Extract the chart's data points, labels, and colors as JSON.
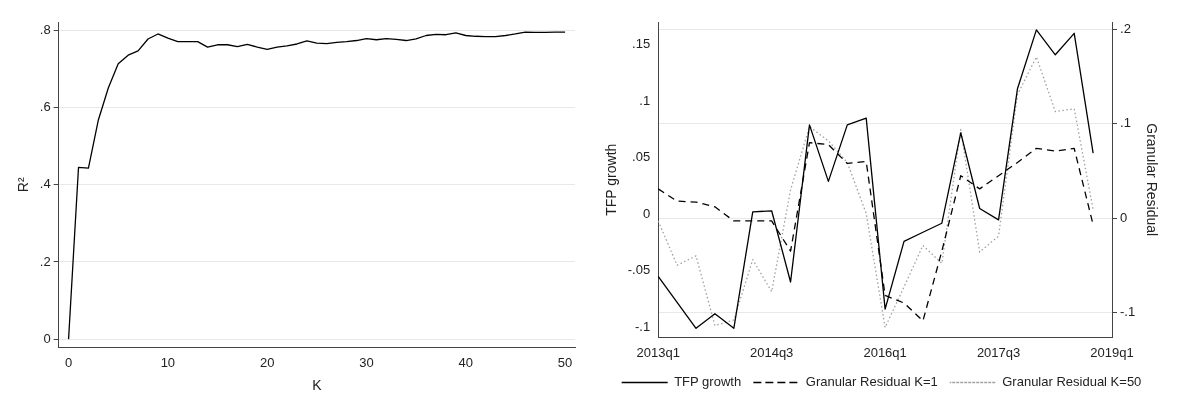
{
  "chart_data": [
    {
      "type": "line",
      "xlabel": "K",
      "ylabel": "R²",
      "x": [
        0,
        1,
        2,
        3,
        4,
        5,
        6,
        7,
        8,
        9,
        10,
        11,
        12,
        13,
        14,
        15,
        16,
        17,
        18,
        19,
        20,
        21,
        22,
        23,
        24,
        25,
        26,
        27,
        28,
        29,
        30,
        31,
        32,
        33,
        34,
        35,
        36,
        37,
        38,
        39,
        40,
        41,
        42,
        43,
        44,
        45,
        46,
        47,
        48,
        49,
        50
      ],
      "values": [
        0,
        0.445,
        0.443,
        0.568,
        0.651,
        0.714,
        0.736,
        0.747,
        0.778,
        0.791,
        0.78,
        0.771,
        0.771,
        0.771,
        0.757,
        0.763,
        0.763,
        0.758,
        0.764,
        0.757,
        0.751,
        0.757,
        0.76,
        0.765,
        0.773,
        0.767,
        0.766,
        0.769,
        0.771,
        0.774,
        0.779,
        0.776,
        0.779,
        0.777,
        0.774,
        0.778,
        0.787,
        0.79,
        0.789,
        0.794,
        0.787,
        0.785,
        0.784,
        0.784,
        0.787,
        0.791,
        0.796,
        0.795,
        0.795,
        0.796,
        0.796
      ],
      "color": "#000000",
      "xlim": [
        -1,
        51
      ],
      "xticks": [
        0,
        10,
        20,
        30,
        40,
        50
      ],
      "ylim": [
        -0.022,
        0.822
      ],
      "yticks": [
        0,
        {
          "value": 0.2,
          "label": ".2"
        },
        {
          "value": 0.4,
          "label": ".4"
        },
        {
          "value": 0.6,
          "label": ".6"
        },
        {
          "value": 0.8,
          "label": ".8"
        }
      ],
      "grid": "y",
      "legend": false
    },
    {
      "type": "line",
      "ylabel": "TFP growth",
      "y2label": "Granular Residual",
      "categories": [
        "2013q1",
        null,
        null,
        null,
        null,
        null,
        "2014q3",
        null,
        null,
        null,
        null,
        null,
        "2016q1",
        null,
        null,
        null,
        null,
        null,
        "2017q3",
        null,
        null,
        null,
        null,
        null,
        "2019q1"
      ],
      "series": [
        {
          "name": "TFP growth",
          "color": "#000000",
          "line_style": "solid",
          "values": [
            -0.055,
            -0.078,
            -0.101,
            -0.088,
            -0.101,
            0.002,
            0.003,
            -0.06,
            0.079,
            0.029,
            0.079,
            0.085,
            -0.084,
            -0.024,
            -0.016,
            -0.008,
            0.072,
            0.005,
            -0.005,
            0.111,
            0.163,
            0.141,
            0.16,
            0.054,
            null
          ]
        },
        {
          "name": "Granular Residual K=1",
          "color": "#000000",
          "line_style": "dashed",
          "axis": "y2",
          "values": [
            0.031,
            0.018,
            0.017,
            0.012,
            -0.003,
            -0.003,
            -0.003,
            -0.035,
            0.08,
            0.078,
            0.058,
            0.06,
            -0.082,
            -0.09,
            -0.109,
            -0.035,
            0.045,
            0.031,
            0.045,
            0.059,
            0.074,
            0.071,
            0.074,
            -0.007,
            null
          ]
        },
        {
          "name": "Granular Residual K=50",
          "color": "#a0a0a0",
          "line_style": "dotted",
          "axis": "y2",
          "values": [
            -0.003,
            -0.05,
            -0.04,
            -0.114,
            -0.108,
            -0.044,
            -0.078,
            0.03,
            0.097,
            0.082,
            0.059,
            0.005,
            -0.116,
            -0.073,
            -0.029,
            -0.048,
            0.094,
            -0.036,
            -0.019,
            0.131,
            0.171,
            0.113,
            0.116,
            0.009,
            null
          ]
        }
      ],
      "ylim": [
        -0.109,
        0.17
      ],
      "yticks": [
        {
          "value": -0.1,
          "label": "-.1"
        },
        {
          "value": -0.05,
          "label": "-.05"
        },
        0,
        {
          "value": 0.05,
          "label": ".05"
        },
        {
          "value": 0.1,
          "label": ".1"
        },
        {
          "value": 0.15,
          "label": ".15"
        }
      ],
      "y2lim": [
        -0.1265,
        0.208
      ],
      "y2ticks": [
        {
          "value": -0.1,
          "label": "-.1"
        },
        0,
        {
          "value": 0.1,
          "label": ".1"
        },
        {
          "value": 0.2,
          "label": ".2"
        }
      ],
      "grid": "y2",
      "legend": "bottom"
    }
  ]
}
